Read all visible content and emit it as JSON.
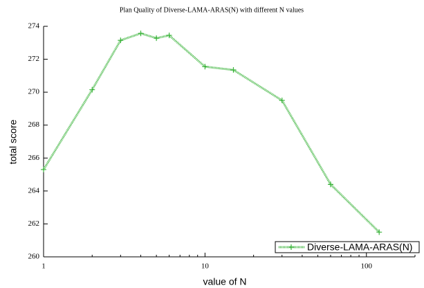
{
  "chart_data": {
    "type": "line",
    "title": "Plan Quality of Diverse-LAMA-ARAS(N) with different N values",
    "x_label": "value of N",
    "y_label": "total score",
    "x": [
      1,
      2,
      3,
      4,
      5,
      6,
      10,
      15,
      30,
      60,
      120
    ],
    "series": [
      {
        "name": "Diverse-LAMA-ARAS(N)",
        "color": "#3cb43c",
        "values": [
          265.3,
          270.15,
          273.15,
          273.57,
          273.28,
          273.45,
          271.55,
          271.35,
          269.5,
          264.4,
          261.5
        ]
      }
    ],
    "xlim": [
      1,
      200
    ],
    "xticks": [
      1,
      10,
      100
    ],
    "x_log": true,
    "ylim": [
      260,
      274
    ],
    "yticks": [
      260,
      262,
      264,
      266,
      268,
      270,
      272,
      274
    ],
    "legend": "lower right"
  }
}
